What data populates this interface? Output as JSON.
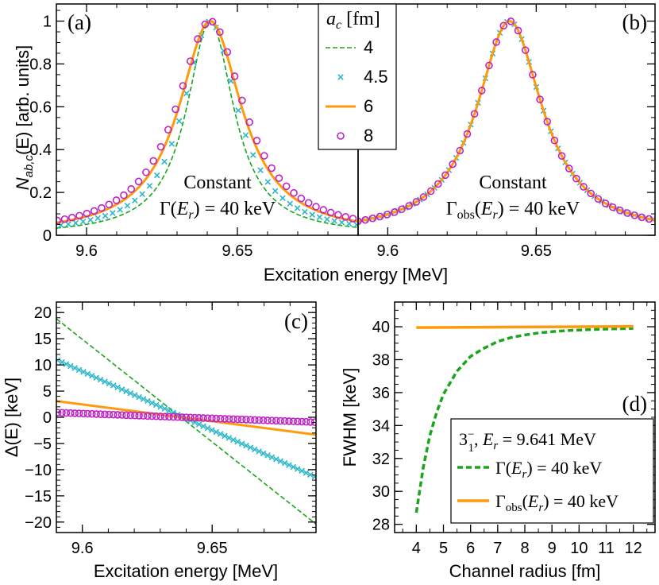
{
  "colors": {
    "green": "#1aa61a",
    "cyan": "#2ab8c8",
    "orange": "#ff9a0a",
    "magenta": "#c020c8",
    "black": "#000000"
  },
  "chart_data": [
    {
      "id": "a",
      "type": "line",
      "panel_label": "(a)",
      "xlim": [
        9.59,
        9.69
      ],
      "ylim": [
        0,
        1.08
      ],
      "xticks": [
        9.6,
        9.65
      ],
      "xtick_labels": [
        "9.6",
        "9.65"
      ],
      "yticks": [
        0,
        0.2,
        0.4,
        0.6,
        0.8,
        1
      ],
      "ytick_labels": [
        "0",
        "0.2",
        "0.4",
        "0.6",
        "0.8",
        "1"
      ],
      "ylabel_main": "N",
      "ylabel_sub": "ab,c",
      "ylabel_rest": "(E) [arb. units]",
      "annotation_line1": "Constant",
      "annotation_line2_pre": "Γ(",
      "annotation_line2_var": "E",
      "annotation_line2_sub": "r",
      "annotation_line2_post": ") = 40 keV",
      "peak": 9.641,
      "series": [
        {
          "name": "4",
          "style": "dashed",
          "color": "green",
          "width_keV": 19.0
        },
        {
          "name": "4.5",
          "style": "cross",
          "color": "cyan",
          "width_keV": 22.0
        },
        {
          "name": "6",
          "style": "solid",
          "color": "orange",
          "width_keV": 25.5
        },
        {
          "name": "8",
          "style": "circle",
          "color": "magenta",
          "width_keV": 27.5
        }
      ]
    },
    {
      "id": "b",
      "type": "line",
      "panel_label": "(b)",
      "xlim": [
        9.59,
        9.69
      ],
      "ylim": [
        0,
        1.08
      ],
      "xticks": [
        9.6,
        9.65
      ],
      "xtick_labels": [
        "9.6",
        "9.65"
      ],
      "annotation_line1": "Constant",
      "annotation_line2_pre": "Γ",
      "annotation_line2_sub": "obs",
      "annotation_line2_mid": "(",
      "annotation_line2_var": "E",
      "annotation_line2_sub2": "r",
      "annotation_line2_post": ") = 40 keV",
      "peak": 9.641,
      "width_keV": 27.0,
      "legend_title_var": "a",
      "legend_title_sub": "c",
      "legend_title_unit": " [fm]",
      "series": [
        {
          "name": "4",
          "style": "dashed",
          "color": "green"
        },
        {
          "name": "4.5",
          "style": "cross",
          "color": "cyan"
        },
        {
          "name": "6",
          "style": "solid",
          "color": "orange"
        },
        {
          "name": "8",
          "style": "circle",
          "color": "magenta"
        }
      ]
    },
    {
      "id": "c",
      "type": "line",
      "panel_label": "(c)",
      "xlabel": "Excitation energy [MeV]",
      "xlim": [
        9.59,
        9.69
      ],
      "ylim": [
        -22,
        22
      ],
      "xticks": [
        9.6,
        9.65
      ],
      "xtick_labels": [
        "9.6",
        "9.65"
      ],
      "yticks": [
        -20,
        -15,
        -10,
        -5,
        0,
        5,
        10,
        15,
        20
      ],
      "ytick_labels": [
        "−20",
        "−15",
        "−10",
        "−5",
        "0",
        "5",
        "10",
        "15",
        "20"
      ],
      "ylabel": "Δ(E) [keV]",
      "series": [
        {
          "name": "4",
          "style": "dashed",
          "color": "green",
          "endpoints": [
            [
              9.59,
              18.8
            ],
            [
              9.688,
              -19.6
            ]
          ]
        },
        {
          "name": "4.5",
          "style": "cross",
          "color": "cyan",
          "endpoints": [
            [
              9.59,
              11.0
            ],
            [
              9.688,
              -11.0
            ]
          ]
        },
        {
          "name": "6",
          "style": "solid",
          "color": "orange",
          "endpoints": [
            [
              9.59,
              3.1
            ],
            [
              9.688,
              -3.2
            ]
          ]
        },
        {
          "name": "8",
          "style": "circle",
          "color": "magenta",
          "endpoints": [
            [
              9.59,
              0.9
            ],
            [
              9.688,
              -0.9
            ]
          ]
        }
      ]
    },
    {
      "id": "d",
      "type": "line",
      "panel_label": "(d)",
      "xlabel": "Channel radius [fm]",
      "ylabel": "FWHM [keV]",
      "xlim": [
        3.2,
        12.8
      ],
      "ylim": [
        27.5,
        41.5
      ],
      "xticks": [
        4,
        5,
        6,
        7,
        8,
        9,
        10,
        11,
        12
      ],
      "xtick_labels": [
        "4",
        "5",
        "6",
        "7",
        "8",
        "9",
        "10",
        "11",
        "12"
      ],
      "yticks": [
        28,
        30,
        32,
        34,
        36,
        38,
        40
      ],
      "ytick_labels": [
        "28",
        "30",
        "32",
        "34",
        "36",
        "38",
        "40"
      ],
      "legend_state": "3",
      "legend_state_sup": "−",
      "legend_state_sub": "1",
      "legend_energy_var": "E",
      "legend_energy_sub": "r",
      "legend_energy_val": " = 9.641 MeV",
      "series": [
        {
          "name_pre": "Γ(",
          "name_var": "E",
          "name_sub": "r",
          "name_post": ") = 40 keV",
          "style": "dashed",
          "color": "green",
          "x": [
            4,
            4.25,
            4.5,
            4.75,
            5,
            5.5,
            6,
            6.5,
            7,
            7.5,
            8,
            8.5,
            9,
            9.5,
            10,
            10.5,
            11,
            11.5,
            12
          ],
          "y": [
            28.7,
            31.4,
            33.4,
            34.8,
            35.9,
            37.3,
            38.2,
            38.7,
            39.1,
            39.35,
            39.5,
            39.62,
            39.7,
            39.76,
            39.8,
            39.83,
            39.86,
            39.88,
            39.9
          ]
        },
        {
          "name_pre": "Γ",
          "name_sub": "obs",
          "name_mid": "(",
          "name_var": "E",
          "name_sub2": "r",
          "name_post": ") = 40 keV",
          "style": "solid",
          "color": "orange",
          "x": [
            4,
            12
          ],
          "y": [
            39.95,
            40.02
          ]
        }
      ]
    }
  ],
  "shared": {
    "xlabel_top": "Excitation energy [MeV]"
  }
}
